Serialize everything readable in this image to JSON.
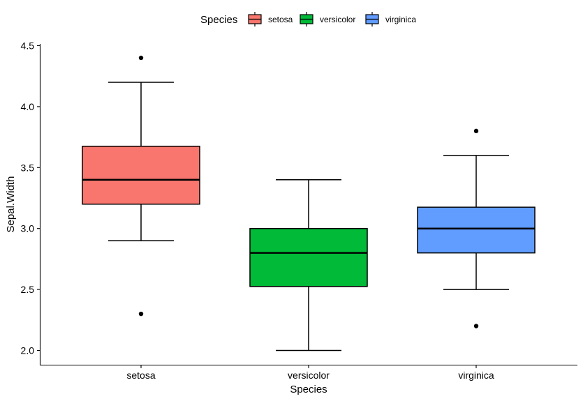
{
  "chart_data": {
    "type": "boxplot",
    "xlabel": "Species",
    "ylabel": "Sepal.Width",
    "categories": [
      "setosa",
      "versicolor",
      "virginica"
    ],
    "ylim": [
      1.95,
      4.55
    ],
    "yticks": [
      "2.0",
      "2.5",
      "3.0",
      "3.5",
      "4.0",
      "4.5"
    ],
    "grid": false,
    "legend": {
      "title": "Species",
      "position": "top",
      "entries": [
        "setosa",
        "versicolor",
        "virginica"
      ]
    },
    "series": [
      {
        "name": "setosa",
        "color": "#F8766D",
        "whisker_low": 2.9,
        "q1": 3.2,
        "median": 3.4,
        "q3": 3.675,
        "whisker_high": 4.2,
        "outliers": [
          4.4,
          2.3
        ]
      },
      {
        "name": "versicolor",
        "color": "#00BA38",
        "whisker_low": 2.0,
        "q1": 2.525,
        "median": 2.8,
        "q3": 3.0,
        "whisker_high": 3.4,
        "outliers": []
      },
      {
        "name": "virginica",
        "color": "#619CFF",
        "whisker_low": 2.5,
        "q1": 2.8,
        "median": 3.0,
        "q3": 3.175,
        "whisker_high": 3.6,
        "outliers": [
          3.8,
          2.2
        ]
      }
    ]
  }
}
